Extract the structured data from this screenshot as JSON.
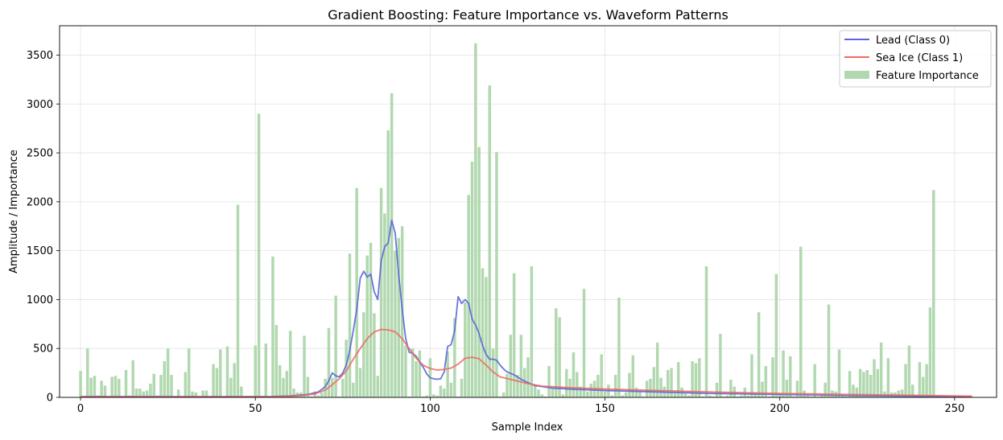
{
  "chart_data": {
    "type": "bar+line",
    "title": "Gradient Boosting: Feature Importance vs. Waveform Patterns",
    "xlabel": "Sample Index",
    "ylabel": "Amplitude / Importance",
    "xlim": [
      -6,
      262
    ],
    "ylim": [
      0,
      3800
    ],
    "x_ticks": [
      0,
      50,
      100,
      150,
      200,
      250
    ],
    "y_ticks": [
      0,
      500,
      1000,
      1500,
      2000,
      2500,
      3000,
      3500
    ],
    "grid": true,
    "legend_position": "top-right",
    "legend": [
      {
        "label": "Lead (Class 0)",
        "kind": "line",
        "color": "#5a66dc"
      },
      {
        "label": "Sea Ice (Class 1)",
        "kind": "line",
        "color": "#ee6a64"
      },
      {
        "label": "Feature Importance",
        "kind": "bar",
        "color": "#b1d8af"
      }
    ],
    "series": [
      {
        "name": "Feature Importance",
        "kind": "bar",
        "color": "#b1d8af",
        "x_start": 0,
        "values": [
          270,
          10,
          500,
          200,
          220,
          20,
          170,
          120,
          10,
          210,
          220,
          190,
          10,
          280,
          20,
          380,
          90,
          90,
          60,
          70,
          140,
          240,
          20,
          230,
          370,
          500,
          230,
          10,
          80,
          10,
          260,
          500,
          60,
          50,
          10,
          70,
          70,
          10,
          340,
          300,
          490,
          10,
          520,
          200,
          350,
          1970,
          110,
          10,
          10,
          10,
          530,
          2900,
          10,
          550,
          10,
          1440,
          740,
          330,
          200,
          270,
          680,
          90,
          50,
          50,
          630,
          210,
          10,
          60,
          20,
          50,
          190,
          710,
          200,
          1040,
          10,
          190,
          590,
          1470,
          150,
          2140,
          300,
          870,
          1450,
          1580,
          860,
          220,
          2140,
          1880,
          2730,
          3110,
          1500,
          1630,
          1750,
          530,
          10,
          500,
          370,
          480,
          10,
          20,
          400,
          30,
          20,
          120,
          90,
          470,
          150,
          810,
          10,
          190,
          970,
          2070,
          2410,
          3620,
          2560,
          1320,
          1230,
          3190,
          500,
          2510,
          10,
          50,
          240,
          640,
          1270,
          230,
          640,
          300,
          410,
          1340,
          130,
          80,
          30,
          10,
          320,
          90,
          910,
          820,
          30,
          290,
          190,
          460,
          260,
          110,
          1110,
          60,
          140,
          170,
          230,
          440,
          60,
          130,
          20,
          230,
          1020,
          20,
          50,
          250,
          430,
          100,
          70,
          10,
          170,
          190,
          310,
          560,
          200,
          110,
          280,
          300,
          40,
          360,
          100,
          40,
          20,
          370,
          350,
          400,
          10,
          1340,
          20,
          10,
          150,
          650,
          10,
          20,
          180,
          110,
          10,
          20,
          100,
          20,
          440,
          50,
          870,
          160,
          320,
          10,
          410,
          1260,
          40,
          480,
          180,
          420,
          10,
          170,
          1540,
          70,
          20,
          10,
          340,
          10,
          30,
          150,
          950,
          70,
          60,
          490,
          20,
          10,
          270,
          130,
          100,
          290,
          260,
          280,
          230,
          390,
          290,
          560,
          60,
          400,
          50,
          50,
          70,
          80,
          340,
          530,
          130,
          20,
          360,
          210,
          340,
          920,
          2120
        ]
      },
      {
        "name": "Lead (Class 0)",
        "kind": "line",
        "color": "#5a66dc",
        "points": [
          [
            0,
            8
          ],
          [
            20,
            8
          ],
          [
            40,
            8
          ],
          [
            55,
            9
          ],
          [
            60,
            15
          ],
          [
            65,
            30
          ],
          [
            68,
            55
          ],
          [
            70,
            110
          ],
          [
            71,
            170
          ],
          [
            72,
            250
          ],
          [
            73,
            220
          ],
          [
            74,
            210
          ],
          [
            75,
            250
          ],
          [
            76,
            330
          ],
          [
            77,
            480
          ],
          [
            78,
            680
          ],
          [
            79,
            900
          ],
          [
            80,
            1220
          ],
          [
            81,
            1290
          ],
          [
            82,
            1230
          ],
          [
            83,
            1260
          ],
          [
            84,
            1080
          ],
          [
            85,
            1000
          ],
          [
            86,
            1400
          ],
          [
            87,
            1540
          ],
          [
            88,
            1580
          ],
          [
            89,
            1810
          ],
          [
            90,
            1680
          ],
          [
            91,
            1250
          ],
          [
            92,
            900
          ],
          [
            93,
            600
          ],
          [
            94,
            460
          ],
          [
            95,
            450
          ],
          [
            96,
            420
          ],
          [
            97,
            360
          ],
          [
            98,
            310
          ],
          [
            99,
            240
          ],
          [
            100,
            200
          ],
          [
            101,
            190
          ],
          [
            102,
            185
          ],
          [
            103,
            190
          ],
          [
            104,
            260
          ],
          [
            105,
            520
          ],
          [
            106,
            540
          ],
          [
            107,
            680
          ],
          [
            108,
            1030
          ],
          [
            109,
            960
          ],
          [
            110,
            1000
          ],
          [
            111,
            960
          ],
          [
            112,
            800
          ],
          [
            113,
            740
          ],
          [
            114,
            650
          ],
          [
            115,
            530
          ],
          [
            116,
            440
          ],
          [
            117,
            390
          ],
          [
            118,
            390
          ],
          [
            119,
            380
          ],
          [
            120,
            330
          ],
          [
            121,
            290
          ],
          [
            122,
            260
          ],
          [
            124,
            230
          ],
          [
            126,
            185
          ],
          [
            128,
            150
          ],
          [
            130,
            120
          ],
          [
            135,
            95
          ],
          [
            140,
            85
          ],
          [
            150,
            70
          ],
          [
            160,
            60
          ],
          [
            170,
            50
          ],
          [
            180,
            40
          ],
          [
            200,
            30
          ],
          [
            220,
            20
          ],
          [
            240,
            12
          ],
          [
            255,
            8
          ]
        ]
      },
      {
        "name": "Sea Ice (Class 1)",
        "kind": "line",
        "color": "#ee6a64",
        "points": [
          [
            0,
            5
          ],
          [
            40,
            5
          ],
          [
            55,
            7
          ],
          [
            60,
            12
          ],
          [
            64,
            20
          ],
          [
            67,
            35
          ],
          [
            70,
            75
          ],
          [
            72,
            130
          ],
          [
            74,
            190
          ],
          [
            76,
            270
          ],
          [
            78,
            390
          ],
          [
            80,
            500
          ],
          [
            82,
            600
          ],
          [
            84,
            670
          ],
          [
            86,
            695
          ],
          [
            88,
            690
          ],
          [
            90,
            670
          ],
          [
            92,
            600
          ],
          [
            94,
            500
          ],
          [
            96,
            400
          ],
          [
            98,
            330
          ],
          [
            100,
            295
          ],
          [
            102,
            280
          ],
          [
            104,
            285
          ],
          [
            106,
            300
          ],
          [
            108,
            340
          ],
          [
            110,
            400
          ],
          [
            112,
            410
          ],
          [
            114,
            395
          ],
          [
            116,
            330
          ],
          [
            118,
            260
          ],
          [
            120,
            210
          ],
          [
            124,
            175
          ],
          [
            128,
            140
          ],
          [
            132,
            115
          ],
          [
            140,
            100
          ],
          [
            150,
            85
          ],
          [
            160,
            75
          ],
          [
            180,
            55
          ],
          [
            200,
            40
          ],
          [
            220,
            30
          ],
          [
            240,
            20
          ],
          [
            255,
            12
          ]
        ]
      }
    ]
  }
}
